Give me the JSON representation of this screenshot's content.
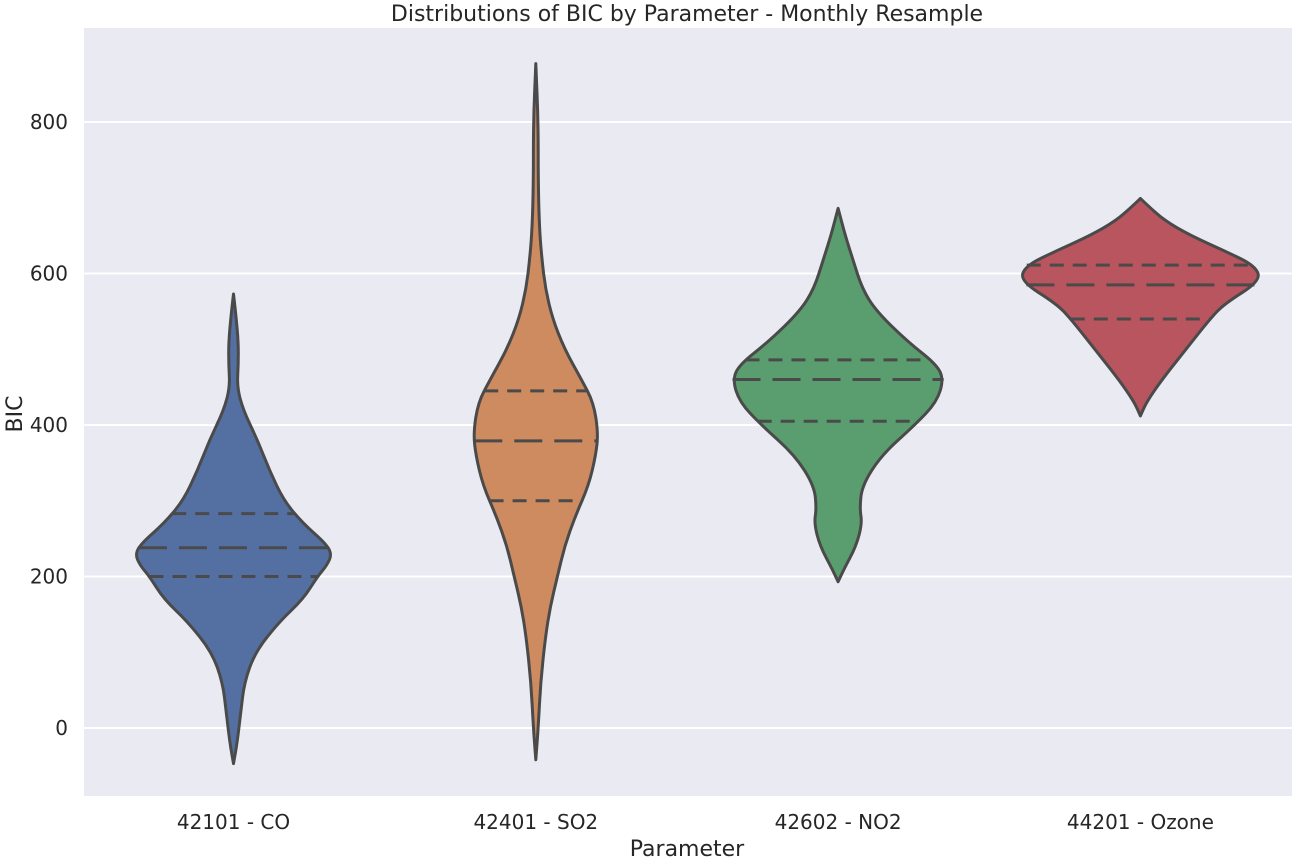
{
  "chart_data": {
    "type": "violin",
    "title": "Distributions of BIC by Parameter - Monthly Resample",
    "xlabel": "Parameter",
    "ylabel": "BIC",
    "ylim": [
      -90,
      925
    ],
    "yticks": [
      0,
      200,
      400,
      600,
      800
    ],
    "grid": true,
    "categories": [
      "42101 - CO",
      "42401 - SO2",
      "42602 - NO2",
      "44201 - Ozone"
    ],
    "series": [
      {
        "category": "42101 - CO",
        "color": "#5470a3",
        "quartiles": {
          "q1": 200,
          "median": 238,
          "q3": 283
        },
        "profile": [
          [
            -47,
            0
          ],
          [
            -20,
            3
          ],
          [
            20,
            6
          ],
          [
            60,
            9
          ],
          [
            100,
            18
          ],
          [
            140,
            38
          ],
          [
            170,
            58
          ],
          [
            200,
            70
          ],
          [
            215,
            78
          ],
          [
            230,
            82
          ],
          [
            245,
            76
          ],
          [
            270,
            58
          ],
          [
            300,
            42
          ],
          [
            340,
            30
          ],
          [
            380,
            20
          ],
          [
            420,
            8
          ],
          [
            450,
            3
          ],
          [
            480,
            4
          ],
          [
            510,
            4
          ],
          [
            545,
            2
          ],
          [
            573,
            0
          ]
        ]
      },
      {
        "category": "42401 - SO2",
        "color": "#ce8b5f",
        "quartiles": {
          "q1": 300,
          "median": 379,
          "q3": 445
        },
        "profile": [
          [
            -42,
            0
          ],
          [
            0,
            2
          ],
          [
            60,
            4
          ],
          [
            120,
            8
          ],
          [
            160,
            12
          ],
          [
            200,
            18
          ],
          [
            240,
            24
          ],
          [
            280,
            33
          ],
          [
            320,
            44
          ],
          [
            360,
            50
          ],
          [
            390,
            52
          ],
          [
            430,
            48
          ],
          [
            460,
            38
          ],
          [
            500,
            24
          ],
          [
            540,
            14
          ],
          [
            580,
            8
          ],
          [
            620,
            5
          ],
          [
            660,
            3
          ],
          [
            720,
            2
          ],
          [
            800,
            2
          ],
          [
            877,
            0
          ]
        ]
      },
      {
        "category": "42602 - NO2",
        "color": "#5a9e6f",
        "quartiles": {
          "q1": 405,
          "median": 460,
          "q3": 486
        },
        "profile": [
          [
            193,
            0
          ],
          [
            210,
            5
          ],
          [
            240,
            15
          ],
          [
            270,
            20
          ],
          [
            290,
            18
          ],
          [
            320,
            20
          ],
          [
            360,
            36
          ],
          [
            400,
            64
          ],
          [
            430,
            82
          ],
          [
            460,
            88
          ],
          [
            480,
            82
          ],
          [
            510,
            58
          ],
          [
            550,
            32
          ],
          [
            580,
            20
          ],
          [
            620,
            12
          ],
          [
            650,
            6
          ],
          [
            686,
            0
          ]
        ]
      },
      {
        "category": "44201 - Ozone",
        "color": "#b8555f",
        "quartiles": {
          "q1": 540,
          "median": 585,
          "q3": 611
        },
        "profile": [
          [
            412,
            0
          ],
          [
            430,
            5
          ],
          [
            460,
            18
          ],
          [
            500,
            38
          ],
          [
            540,
            58
          ],
          [
            560,
            70
          ],
          [
            590,
            100
          ],
          [
            610,
            96
          ],
          [
            630,
            70
          ],
          [
            650,
            42
          ],
          [
            670,
            20
          ],
          [
            690,
            6
          ],
          [
            699,
            0
          ]
        ]
      }
    ]
  }
}
